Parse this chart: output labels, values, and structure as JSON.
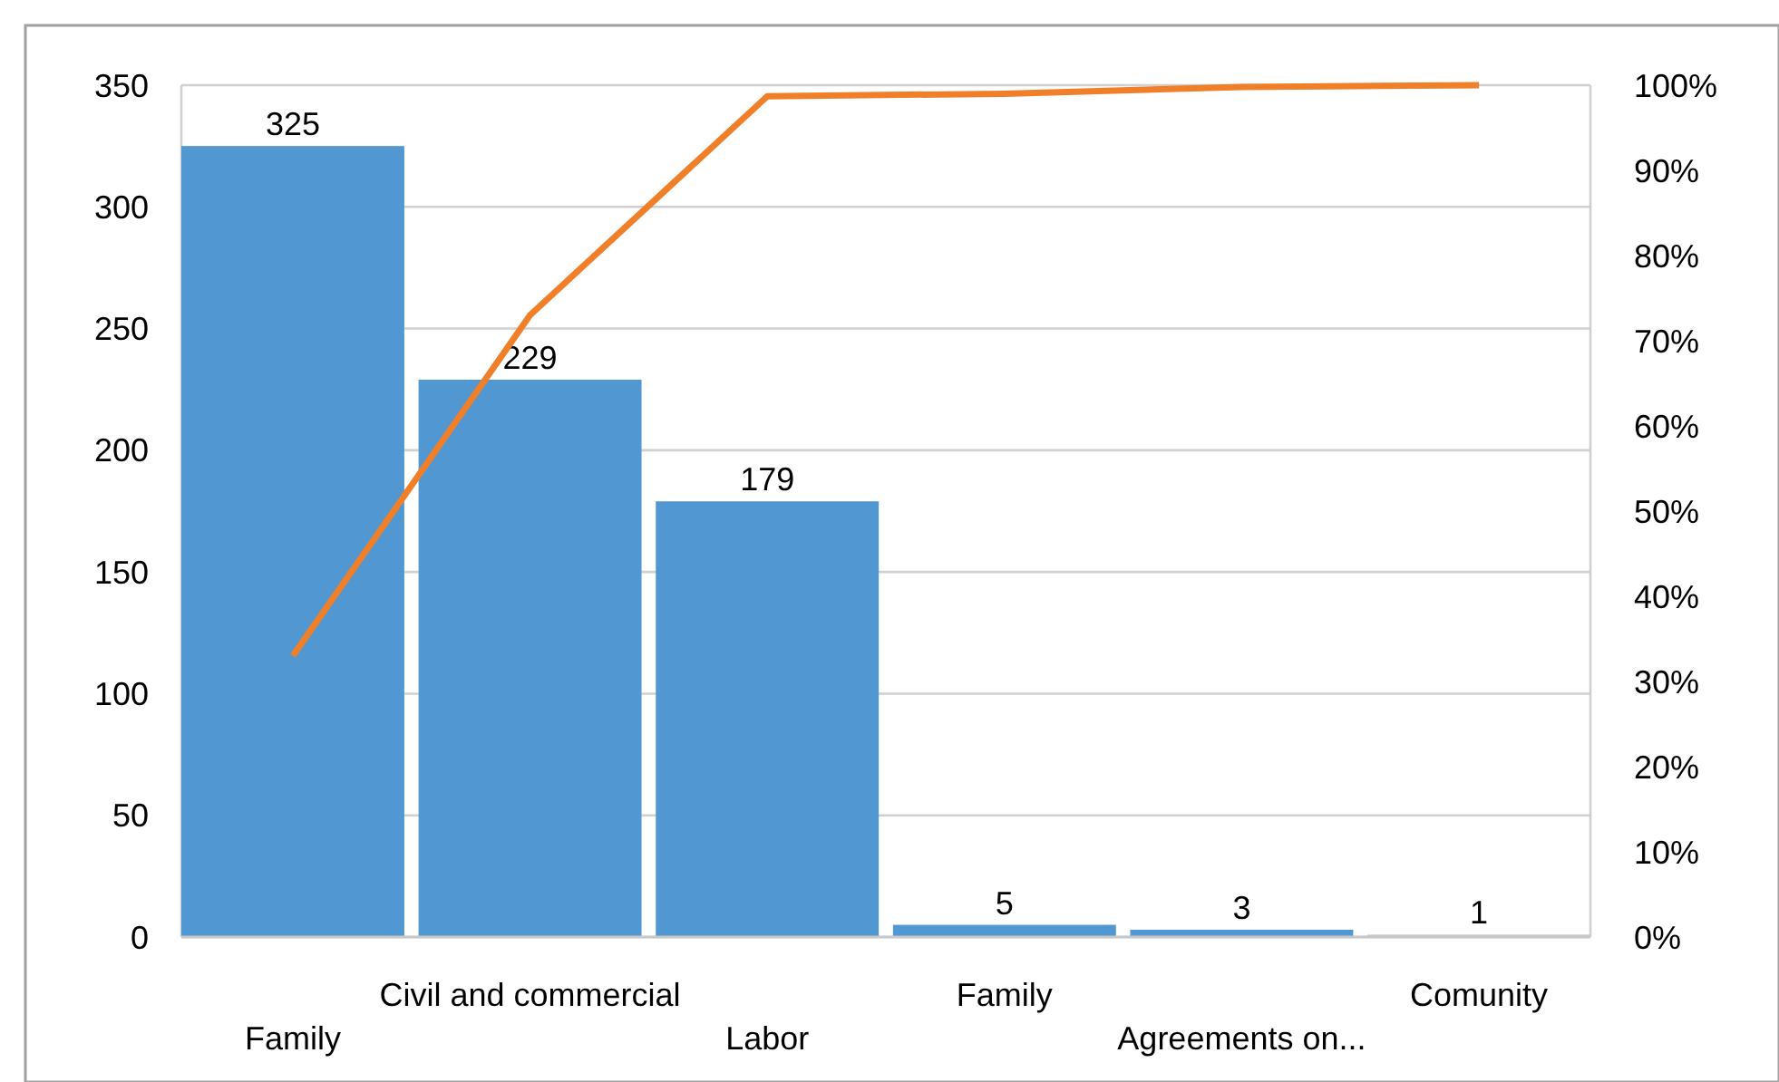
{
  "chart_data": {
    "type": "bar",
    "categories": [
      "Family",
      "Civil and commercial",
      "Labor",
      "Family",
      "Agreements on...",
      "Comunity"
    ],
    "series": [
      {
        "colors": [
          "#5197d2",
          "#5197d2",
          "#5197d2",
          "#5197d2",
          "#5197d2",
          "#c8c8c8"
        ],
        "values": [
          325,
          229,
          179,
          5,
          3,
          1
        ],
        "value_labels": [
          "325",
          "229",
          "179",
          "5",
          "3",
          "1"
        ]
      },
      {
        "type": "line",
        "axis": "y2",
        "color": "#f07f2a",
        "values": [
          33,
          73,
          98.7,
          99,
          99.8,
          100
        ]
      }
    ],
    "ylim": [
      0,
      350
    ],
    "yticks": [
      0,
      50,
      100,
      150,
      200,
      250,
      300,
      350
    ],
    "y2lim": [
      0,
      100
    ],
    "y2ticks": [
      {
        "value": 0,
        "label": "0%"
      },
      {
        "value": 10,
        "label": "10%"
      },
      {
        "value": 20,
        "label": "20%"
      },
      {
        "value": 30,
        "label": "30%"
      },
      {
        "value": 40,
        "label": "40%"
      },
      {
        "value": 50,
        "label": "50%"
      },
      {
        "value": 60,
        "label": "60%"
      },
      {
        "value": 70,
        "label": "70%"
      },
      {
        "value": 80,
        "label": "80%"
      },
      {
        "value": 90,
        "label": "90%"
      },
      {
        "value": 100,
        "label": "100%"
      }
    ],
    "grid": "y",
    "marker": "none",
    "line_style": "solid"
  }
}
